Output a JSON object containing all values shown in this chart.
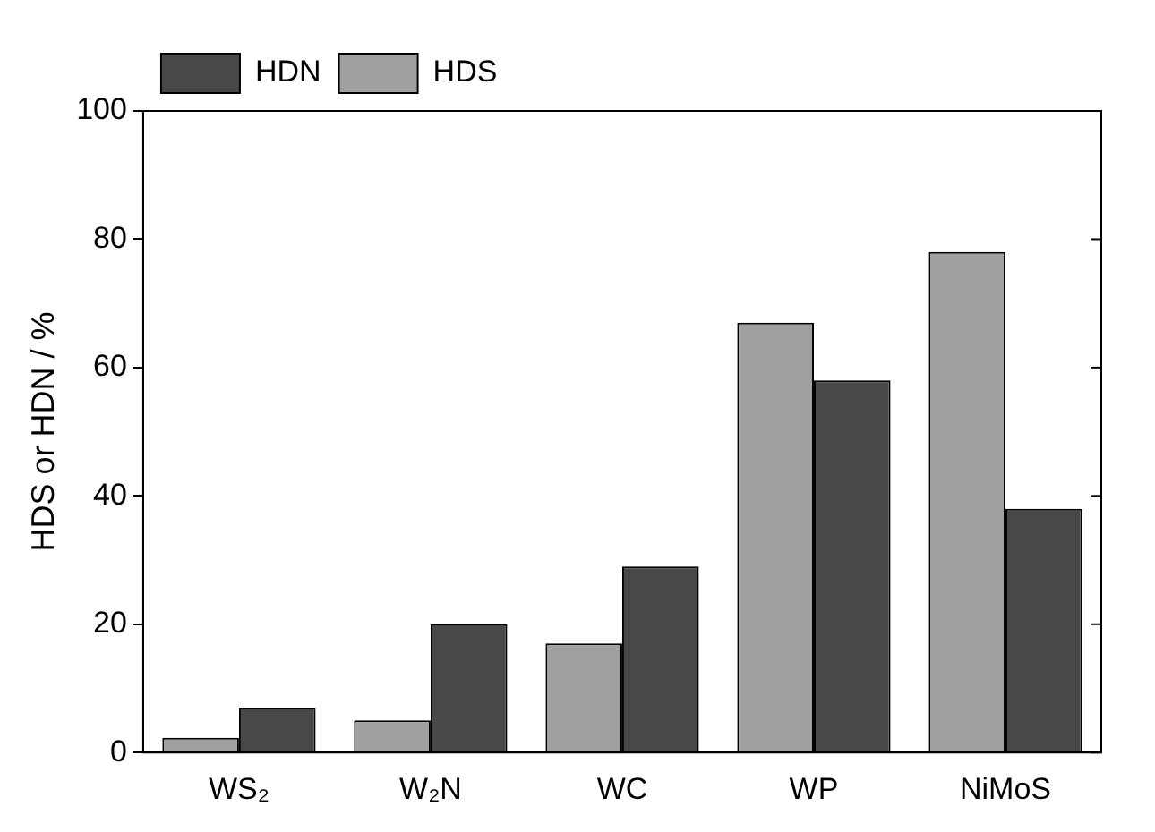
{
  "chart_data": {
    "type": "bar",
    "ylabel": "HDS or HDN / %",
    "categories": [
      "WS₂",
      "W₂N",
      "WC",
      "WP",
      "NiMoS"
    ],
    "series": [
      {
        "name": "HDS",
        "color": "#a0a0a0",
        "values": [
          2.3,
          5,
          17,
          67,
          78
        ]
      },
      {
        "name": "HDN",
        "color": "#484848",
        "values": [
          7,
          20,
          29,
          58,
          38
        ]
      }
    ],
    "ylim": [
      0,
      100
    ],
    "yticks": [
      0,
      20,
      40,
      60,
      80,
      100
    ],
    "grid": false,
    "legend": "top left"
  }
}
